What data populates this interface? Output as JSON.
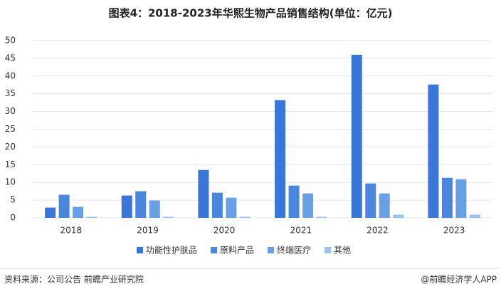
{
  "chart_data": {
    "type": "bar",
    "title": "图表4：2018-2023年华熙生物产品销售结构(单位：亿元)",
    "categories": [
      "2018",
      "2019",
      "2020",
      "2021",
      "2022",
      "2023"
    ],
    "series": [
      {
        "name": "功能性护肤品",
        "color": "#3a76d6",
        "values": [
          2.9,
          6.3,
          13.5,
          33.2,
          46.0,
          37.6
        ]
      },
      {
        "name": "原料产品",
        "color": "#4a86dc",
        "values": [
          6.5,
          7.5,
          7.1,
          9.1,
          9.7,
          11.3
        ]
      },
      {
        "name": "终端医疗",
        "color": "#6b9fe4",
        "values": [
          3.1,
          4.9,
          5.7,
          6.9,
          6.9,
          10.9
        ]
      },
      {
        "name": "其他",
        "color": "#9cc0ef",
        "values": [
          0.3,
          0.3,
          0.3,
          0.3,
          0.9,
          0.9
        ]
      }
    ],
    "ylim": [
      0,
      50
    ],
    "yticks": [
      0,
      5,
      10,
      15,
      20,
      25,
      30,
      35,
      40,
      45,
      50
    ],
    "grid": true,
    "legend": "bottom"
  },
  "footer": {
    "source": "资料来源：公司公告 前瞻产业研究院",
    "brand": "@前瞻经济学人APP"
  }
}
